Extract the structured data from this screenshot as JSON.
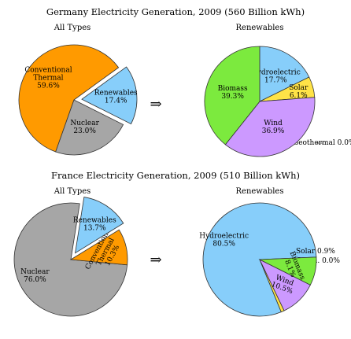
{
  "chart_data": [
    {
      "type": "pie",
      "title": "Germany Electricity Generation, 2009 (560 Billion kWh)",
      "subtitle": "All Types",
      "labels": [
        "Conventional Thermal",
        "Nuclear",
        "Renewables"
      ],
      "label_lines": [
        [
          "Conventional",
          "Thermal"
        ],
        [
          "Nuclear"
        ],
        [
          "Renewables"
        ]
      ],
      "values": [
        59.6,
        23.0,
        17.4
      ],
      "value_labels": [
        "59.6%",
        "23.0%",
        "17.4%"
      ],
      "colors": [
        "#ff9a00",
        "#a6a6a6",
        "#87cefa"
      ],
      "exploded": "Renewables"
    },
    {
      "type": "pie",
      "subtitle": "Renewables",
      "labels": [
        "Hydroelectric",
        "Solar",
        "Geothermal",
        "Wind",
        "Biomass"
      ],
      "label_lines": [
        [
          "Hydroelectric"
        ],
        [
          "Solar"
        ],
        [
          "Geothermal"
        ],
        [
          "Wind"
        ],
        [
          "Biomass"
        ]
      ],
      "values": [
        17.7,
        6.1,
        0.0,
        36.9,
        39.3
      ],
      "value_labels": [
        "17.7%",
        "6.1%",
        "0.0%",
        "36.9%",
        "39.3%"
      ],
      "colors": [
        "#87cefa",
        "#ffe347",
        "#87cefa",
        "#cc99ff",
        "#7cea3e"
      ]
    },
    {
      "type": "pie",
      "title": "France Electricity Generation, 2009 (510 Billion kWh)",
      "subtitle": "All Types",
      "labels": [
        "Nuclear",
        "Conventional Thermal",
        "Renewables"
      ],
      "label_lines": [
        [
          "Nuclear"
        ],
        [
          "Conventional",
          "Thermal"
        ],
        [
          "Renewables"
        ]
      ],
      "values": [
        76.0,
        10.3,
        13.7
      ],
      "value_labels": [
        "76.0%",
        "10.3%",
        "13.7%"
      ],
      "colors": [
        "#a6a6a6",
        "#ff9a00",
        "#87cefa"
      ],
      "exploded": "Renewables"
    },
    {
      "type": "pie",
      "subtitle": "Renewables",
      "labels": [
        "Hydroelectric",
        "Solar",
        "Geoth.",
        "Wind",
        "Biomass"
      ],
      "label_lines": [
        [
          "Hydroelectric"
        ],
        [
          "Solar"
        ],
        [
          "Geoth."
        ],
        [
          "Wind"
        ],
        [
          "Biomass"
        ]
      ],
      "values": [
        80.5,
        0.9,
        0.0,
        10.5,
        8.1
      ],
      "value_labels": [
        "80.5%",
        "0.9%",
        "0.0%",
        "10.5%",
        "8.1%"
      ],
      "colors": [
        "#87cefa",
        "#ffe347",
        "#87cefa",
        "#cc99ff",
        "#7cea3e"
      ]
    }
  ],
  "arrow_symbol": "⇒"
}
